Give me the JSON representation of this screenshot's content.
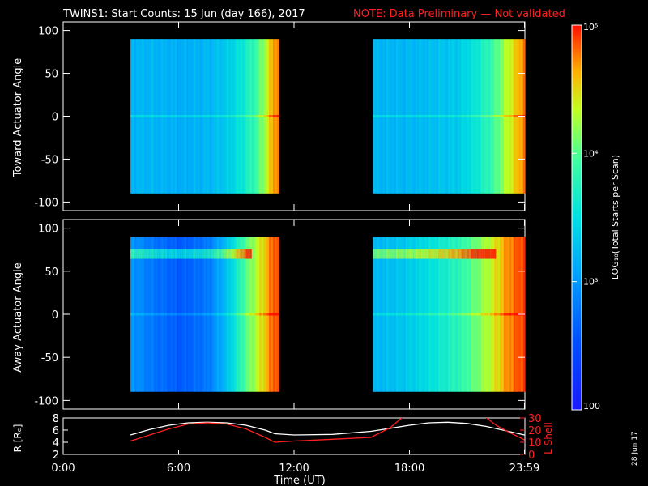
{
  "header": {
    "title": "TWINS1: Start Counts: 15 Jun (day 166), 2017",
    "note": "NOTE: Data Preliminary — Not validated",
    "note_color": "#ff2020"
  },
  "footer": {
    "date_stamp": "28 Jun 17"
  },
  "chart_data": [
    {
      "type": "heatmap",
      "panel": "top",
      "ylabel": "Toward Actuator Angle",
      "ylim": [
        -110,
        110
      ],
      "yticks": [
        100,
        50,
        0,
        -50,
        -100
      ],
      "xlim_hours": [
        0,
        24
      ],
      "data_blocks_hours": [
        [
          3.5,
          11.2
        ],
        [
          16.1,
          24.0
        ]
      ],
      "y_extent": [
        -90,
        90
      ],
      "profile_log10": [
        [
          3.5,
          3.2
        ],
        [
          4.5,
          3.2
        ],
        [
          6.0,
          3.15
        ],
        [
          7.5,
          3.2
        ],
        [
          8.5,
          3.35
        ],
        [
          9.3,
          3.6
        ],
        [
          10.0,
          3.9
        ],
        [
          10.5,
          4.3
        ],
        [
          10.9,
          4.7
        ],
        [
          11.2,
          4.8
        ]
      ],
      "profile2_log10": [
        [
          16.1,
          3.2
        ],
        [
          17.5,
          3.2
        ],
        [
          19.0,
          3.25
        ],
        [
          20.5,
          3.35
        ],
        [
          21.5,
          3.6
        ],
        [
          22.3,
          3.9
        ],
        [
          23.0,
          4.3
        ],
        [
          23.6,
          4.6
        ],
        [
          24.0,
          4.8
        ]
      ]
    },
    {
      "type": "heatmap",
      "panel": "middle",
      "ylabel": "Away Actuator Angle",
      "ylim": [
        -110,
        110
      ],
      "yticks": [
        100,
        50,
        0,
        -50,
        -100
      ],
      "xlim_hours": [
        0,
        24
      ],
      "data_blocks_hours": [
        [
          3.5,
          11.2
        ],
        [
          16.1,
          24.0
        ]
      ],
      "y_extent": [
        -90,
        90
      ],
      "profile_log10": [
        [
          3.5,
          3.0
        ],
        [
          4.5,
          2.8
        ],
        [
          6.0,
          2.6
        ],
        [
          7.5,
          2.8
        ],
        [
          8.5,
          3.3
        ],
        [
          9.3,
          3.9
        ],
        [
          10.0,
          4.3
        ],
        [
          10.5,
          4.6
        ],
        [
          10.9,
          4.85
        ],
        [
          11.2,
          4.9
        ]
      ],
      "profile2_log10": [
        [
          16.1,
          3.2
        ],
        [
          17.5,
          3.3
        ],
        [
          19.0,
          3.5
        ],
        [
          20.5,
          3.8
        ],
        [
          21.5,
          4.1
        ],
        [
          22.3,
          4.4
        ],
        [
          23.0,
          4.7
        ],
        [
          23.6,
          4.85
        ],
        [
          24.0,
          4.9
        ]
      ],
      "band_angle": 70
    },
    {
      "type": "line",
      "panel": "bottom",
      "ylabel": "R [Rₑ]",
      "y2label": "L Shell",
      "ylim": [
        2,
        8
      ],
      "yticks": [
        8,
        6,
        4,
        2
      ],
      "y2lim": [
        0,
        30
      ],
      "y2ticks": [
        30,
        20,
        10,
        0
      ],
      "xlabel": "Time (UT)",
      "xticks": [
        "0:00",
        "6:00",
        "12:00",
        "18:00",
        "23:59"
      ],
      "xtick_hours": [
        0,
        6,
        12,
        18,
        23.98
      ],
      "series": [
        {
          "axis": "left",
          "color": "#ffffff",
          "x": [
            3.5,
            4.5,
            5.5,
            6.5,
            7.5,
            8.5,
            9.5,
            10.5,
            11.0,
            12.0,
            14.0,
            16.0,
            17.0,
            18.0,
            19.0,
            20.0,
            21.0,
            22.0,
            23.0,
            23.98
          ],
          "y": [
            5.2,
            6.1,
            6.8,
            7.2,
            7.3,
            7.2,
            6.8,
            6.0,
            5.4,
            5.2,
            5.3,
            5.8,
            6.3,
            6.8,
            7.2,
            7.3,
            7.1,
            6.6,
            5.9,
            5.2
          ]
        },
        {
          "axis": "right",
          "color": "#ff2020",
          "x": [
            3.5,
            4.5,
            5.5,
            6.5,
            7.5,
            8.5,
            9.5,
            10.5,
            11.0,
            12.0,
            14.0,
            16.0,
            17.0,
            17.9
          ],
          "y": [
            11,
            16,
            21,
            25,
            26,
            25,
            21,
            14,
            10,
            11,
            12.5,
            14,
            22,
            34
          ]
        },
        {
          "axis": "right",
          "color": "#ff2020",
          "x": [
            21.7,
            22.5,
            23.2,
            23.98
          ],
          "y": [
            34,
            24,
            18,
            12
          ]
        }
      ]
    }
  ],
  "colorbar": {
    "label": "LOG₁₀(Total Starts per Scan)",
    "tick_labels": [
      "10⁵",
      "10⁴",
      "10³",
      "100"
    ],
    "tick_log10": [
      5,
      4,
      3,
      2
    ],
    "range_log10": [
      2,
      5
    ]
  }
}
